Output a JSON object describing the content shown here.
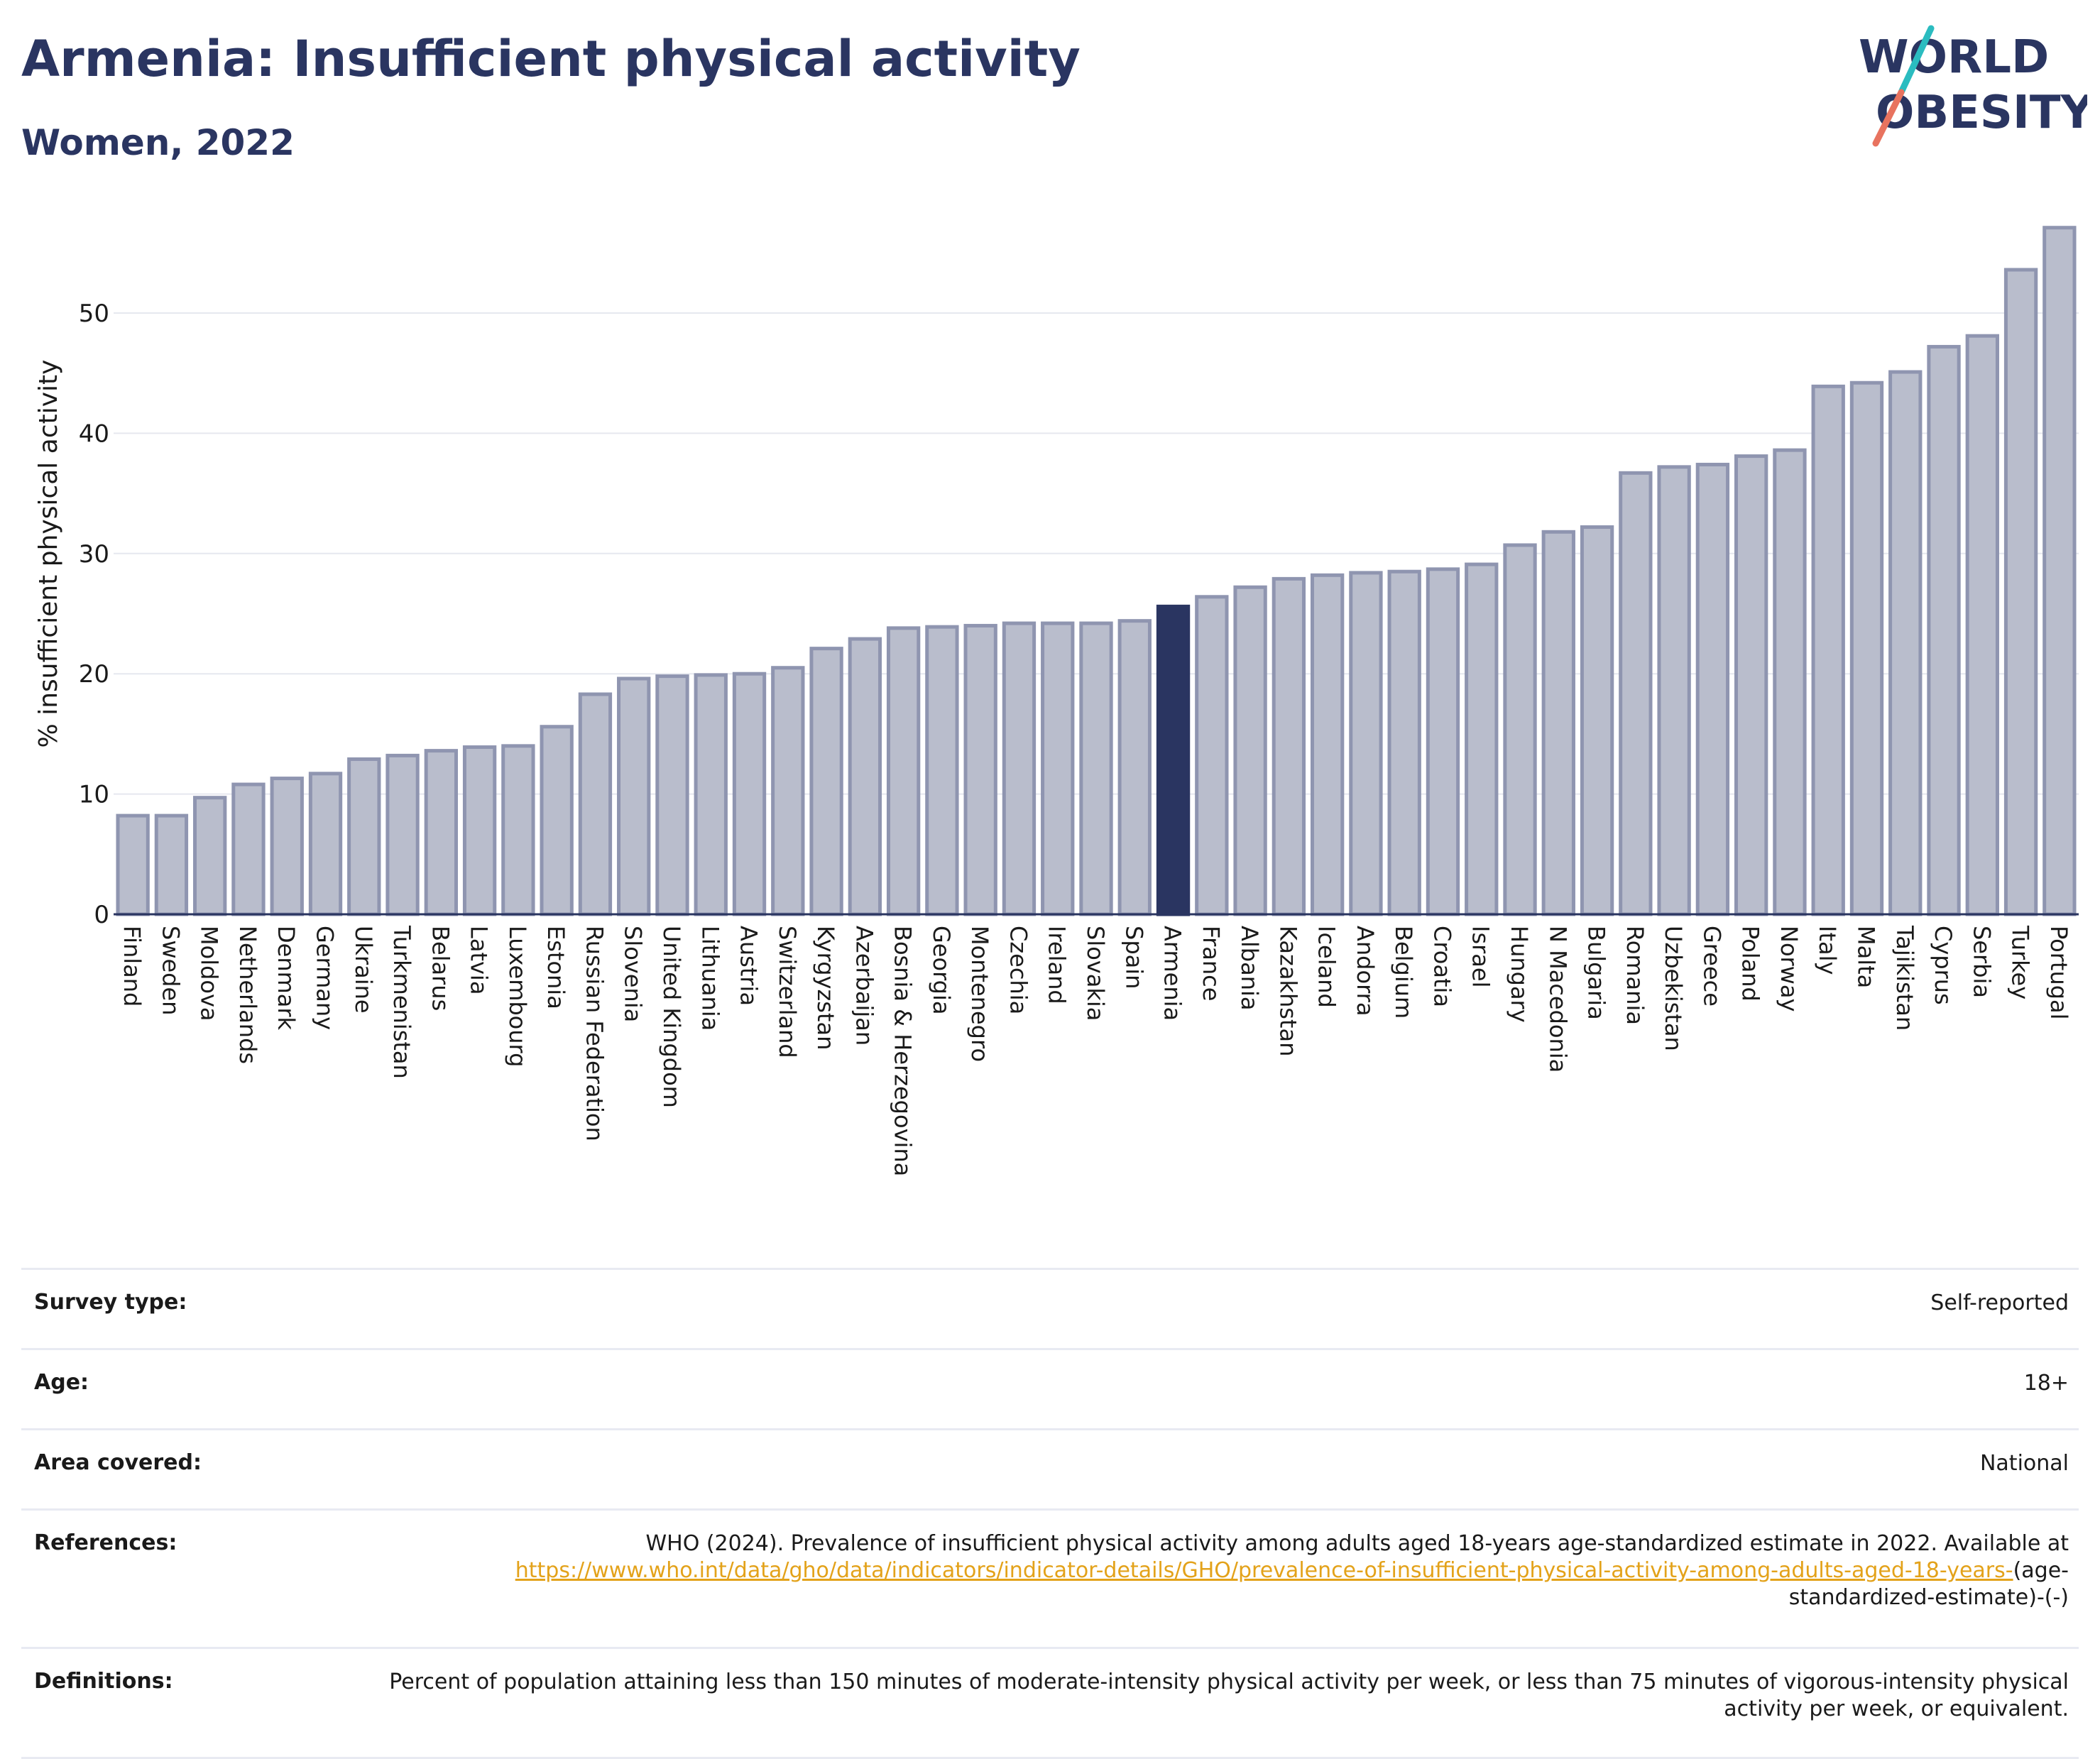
{
  "header": {
    "title": "Armenia: Insufficient physical activity",
    "subtitle": "Women, 2022",
    "logo_line1": "WORLD",
    "logo_line2": "OBESITY"
  },
  "colors": {
    "title": "#2a3561",
    "bar": "#b9bdcc",
    "bar_edge": "#8f95b0",
    "highlight": "#2a3561",
    "grid": "#e6e8ef",
    "link": "#e3a21a",
    "logo_accent_top": "#2bbcc0",
    "logo_accent_bottom": "#e8735f"
  },
  "chart_data": {
    "type": "bar",
    "title": "Armenia: Insufficient physical activity",
    "subtitle": "Women, 2022",
    "xlabel": "",
    "ylabel": "% insufficient physical activity",
    "ylim": [
      0,
      58
    ],
    "yticks": [
      0,
      10,
      20,
      30,
      40,
      50
    ],
    "grid": true,
    "highlight": "Armenia",
    "categories": [
      "Finland",
      "Sweden",
      "Moldova",
      "Netherlands",
      "Denmark",
      "Germany",
      "Ukraine",
      "Turkmenistan",
      "Belarus",
      "Latvia",
      "Luxembourg",
      "Estonia",
      "Russian Federation",
      "Slovenia",
      "United Kingdom",
      "Lithuania",
      "Austria",
      "Switzerland",
      "Kyrgyzstan",
      "Azerbaijan",
      "Bosnia & Herzegovina",
      "Georgia",
      "Montenegro",
      "Czechia",
      "Ireland",
      "Slovakia",
      "Spain",
      "Armenia",
      "France",
      "Albania",
      "Kazakhstan",
      "Iceland",
      "Andorra",
      "Belgium",
      "Croatia",
      "Israel",
      "Hungary",
      "N Macedonia",
      "Bulgaria",
      "Romania",
      "Uzbekistan",
      "Greece",
      "Poland",
      "Norway",
      "Italy",
      "Malta",
      "Tajikistan",
      "Cyprus",
      "Serbia",
      "Turkey",
      "Portugal"
    ],
    "values": [
      8.2,
      8.2,
      9.7,
      10.8,
      11.3,
      11.7,
      12.9,
      13.2,
      13.6,
      13.9,
      14.0,
      15.6,
      18.3,
      19.6,
      19.8,
      19.9,
      20.0,
      20.5,
      22.1,
      22.9,
      23.8,
      23.9,
      24.0,
      24.2,
      24.2,
      24.2,
      24.4,
      25.6,
      26.4,
      27.2,
      27.9,
      28.2,
      28.4,
      28.5,
      28.7,
      29.1,
      30.7,
      31.8,
      32.2,
      36.7,
      37.2,
      37.4,
      38.1,
      38.6,
      43.9,
      44.2,
      45.1,
      47.2,
      48.1,
      53.6,
      57.1
    ]
  },
  "meta": {
    "survey_label": "Survey type:",
    "survey_value": "Self-reported",
    "age_label": "Age:",
    "age_value": "18+",
    "area_label": "Area covered:",
    "area_value": "National",
    "ref_label": "References:",
    "ref_text": "WHO (2024). Prevalence of insufficient physical activity among adults aged 18-years age-standardized estimate in 2022. Available at",
    "ref_link": "https://www.who.int/data/gho/data/indicators/indicator-details/GHO/prevalence-of-insufficient-physical-activity-among-adults-aged-18-years-",
    "ref_tail": "(age-standardized-estimate)-(-)",
    "def_label": "Definitions:",
    "def_text": "Percent of population attaining less than 150 minutes of moderate-intensity physical activity per week, or less than 75 minutes of vigorous-intensity physical activity per week, or equivalent."
  }
}
